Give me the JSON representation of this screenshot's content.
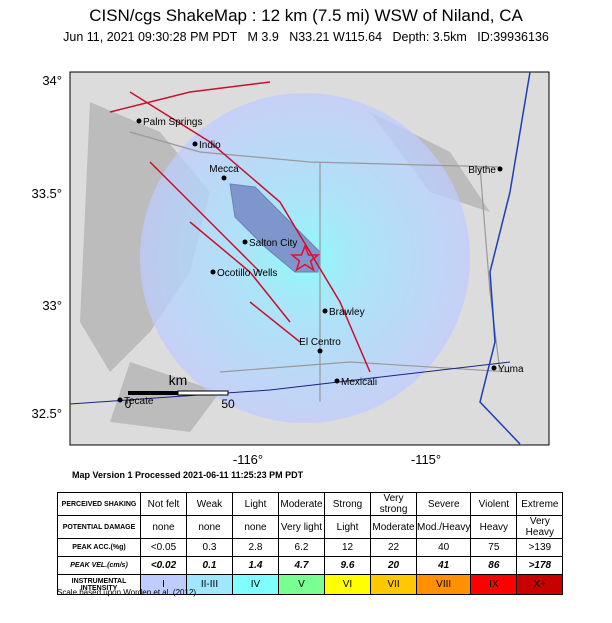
{
  "header": {
    "title": "CISN/cgs ShakeMap : 12 km (7.5 mi) WSW of Niland, CA",
    "subtitle": "Jun 11, 2021 09:30:28 PM PDT   M 3.9   N33.21 W115.64   Depth: 3.5km   ID:39936136"
  },
  "map": {
    "lat_labels": [
      "34°",
      "33.5°",
      "33°",
      "32.5°"
    ],
    "lon_labels": [
      "-116°",
      "-115°"
    ],
    "cities": [
      "Palm Springs",
      "Indio",
      "Mecca",
      "Blythe",
      "Salton City",
      "Ocotillo Wells",
      "Brawley",
      "El Centro",
      "Mexicali",
      "Yuma",
      "Tecate"
    ],
    "scale": {
      "unit": "km",
      "ticks": [
        "0",
        "50"
      ]
    }
  },
  "version": "Map Version 1 Processed 2021-06-11 11:25:23 PM PDT",
  "table": {
    "rows": [
      [
        "PERCEIVED SHAKING",
        "Not felt",
        "Weak",
        "Light",
        "Moderate",
        "Strong",
        "Very strong",
        "Severe",
        "Violent",
        "Extreme"
      ],
      [
        "POTENTIAL DAMAGE",
        "none",
        "none",
        "none",
        "Very light",
        "Light",
        "Moderate",
        "Mod./Heavy",
        "Heavy",
        "Very Heavy"
      ],
      [
        "PEAK ACC.(%g)",
        "<0.05",
        "0.3",
        "2.8",
        "6.2",
        "12",
        "22",
        "40",
        "75",
        ">139"
      ],
      [
        "PEAK VEL.(cm/s)",
        "<0.02",
        "0.1",
        "1.4",
        "4.7",
        "9.6",
        "20",
        "41",
        "86",
        ">178"
      ],
      [
        "INSTRUMENTAL INTENSITY",
        "I",
        "II-III",
        "IV",
        "V",
        "VI",
        "VII",
        "VIII",
        "IX",
        "X+"
      ]
    ]
  },
  "footnote": "Scale based upon Worden et al. (2012)"
}
